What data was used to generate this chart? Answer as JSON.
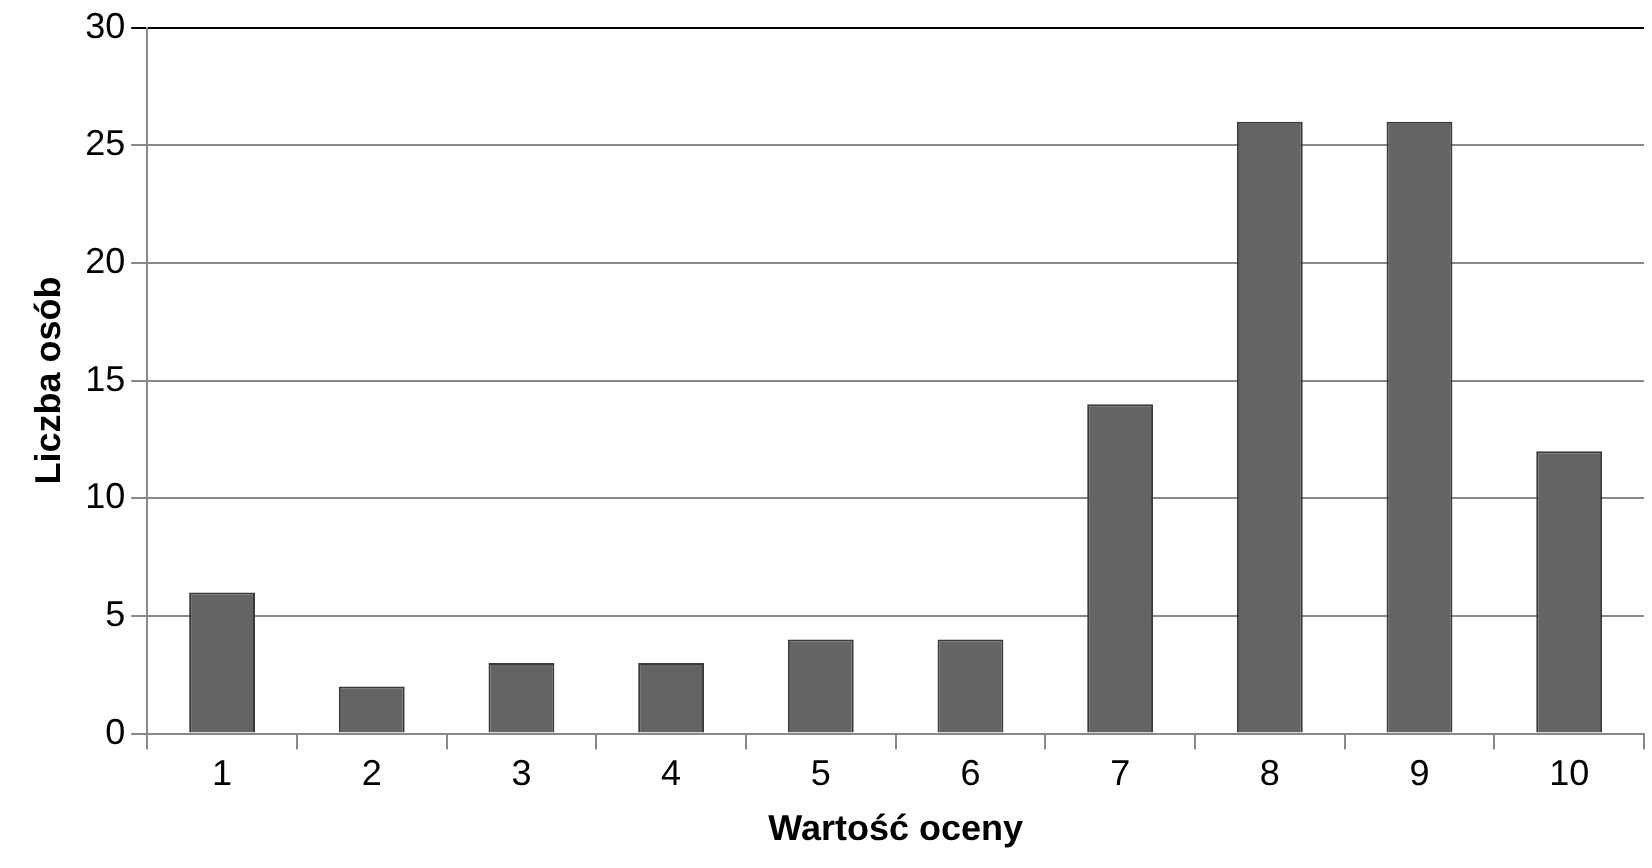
{
  "chart_data": {
    "type": "bar",
    "xlabel": "Wartość oceny",
    "ylabel": "Liczba osób",
    "categories": [
      "1",
      "2",
      "3",
      "4",
      "5",
      "6",
      "7",
      "8",
      "9",
      "10"
    ],
    "values": [
      6,
      2,
      3,
      3,
      4,
      4,
      14,
      26,
      26,
      12
    ],
    "color": "#646464",
    "ylim": [
      0,
      30
    ],
    "yticks": [
      0,
      5,
      10,
      15,
      20,
      25,
      30
    ],
    "grid": "y",
    "legend": false
  }
}
